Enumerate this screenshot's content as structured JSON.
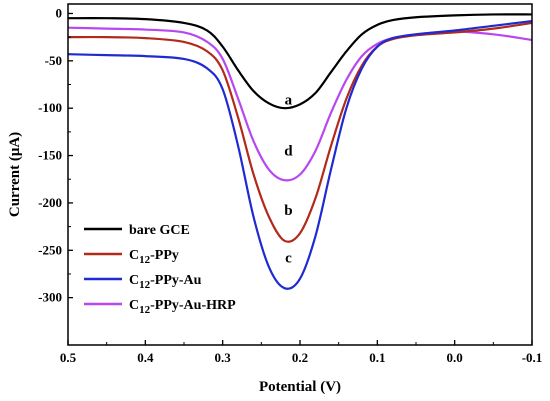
{
  "chart_data": {
    "type": "line",
    "xlabel": "Potential (V)",
    "ylabel": "Current (μA)",
    "xlim": [
      0.5,
      -0.1
    ],
    "ylim": [
      -350,
      10
    ],
    "x_reversed": true,
    "x_ticks": [
      "0.5",
      "0.4",
      "0.3",
      "0.2",
      "0.1",
      "0.0",
      "-0.1"
    ],
    "x_tick_values": [
      0.5,
      0.4,
      0.3,
      0.2,
      0.1,
      0.0,
      -0.1
    ],
    "y_ticks": [
      "0",
      "-50",
      "-100",
      "-150",
      "-200",
      "-250",
      "-300"
    ],
    "y_tick_values": [
      0,
      -50,
      -100,
      -150,
      -200,
      -250,
      -300
    ],
    "legend_position": "bottom-left",
    "series": [
      {
        "name": "bare GCE",
        "color": "#000000",
        "point_label": "a",
        "points": [
          [
            0.5,
            -5
          ],
          [
            0.45,
            -5
          ],
          [
            0.4,
            -6
          ],
          [
            0.35,
            -10
          ],
          [
            0.32,
            -18
          ],
          [
            0.3,
            -35
          ],
          [
            0.28,
            -60
          ],
          [
            0.26,
            -82
          ],
          [
            0.24,
            -95
          ],
          [
            0.22,
            -100
          ],
          [
            0.2,
            -96
          ],
          [
            0.18,
            -84
          ],
          [
            0.16,
            -62
          ],
          [
            0.14,
            -40
          ],
          [
            0.12,
            -22
          ],
          [
            0.1,
            -12
          ],
          [
            0.08,
            -7
          ],
          [
            0.05,
            -4
          ],
          [
            0.0,
            -2
          ],
          [
            -0.05,
            -1
          ],
          [
            -0.1,
            -1
          ]
        ]
      },
      {
        "name": "C12-PPy",
        "color": "#b22a1c",
        "point_label": "b",
        "points": [
          [
            0.5,
            -25
          ],
          [
            0.45,
            -25
          ],
          [
            0.4,
            -26
          ],
          [
            0.35,
            -30
          ],
          [
            0.32,
            -40
          ],
          [
            0.3,
            -60
          ],
          [
            0.28,
            -110
          ],
          [
            0.26,
            -170
          ],
          [
            0.24,
            -215
          ],
          [
            0.22,
            -240
          ],
          [
            0.2,
            -232
          ],
          [
            0.18,
            -195
          ],
          [
            0.16,
            -140
          ],
          [
            0.14,
            -90
          ],
          [
            0.12,
            -55
          ],
          [
            0.1,
            -35
          ],
          [
            0.08,
            -27
          ],
          [
            0.05,
            -23
          ],
          [
            0.0,
            -20
          ],
          [
            -0.05,
            -16
          ],
          [
            -0.1,
            -10
          ]
        ]
      },
      {
        "name": "C12-PPy-Au",
        "color": "#1f2bd1",
        "point_label": "c",
        "points": [
          [
            0.5,
            -43
          ],
          [
            0.45,
            -44
          ],
          [
            0.4,
            -45
          ],
          [
            0.35,
            -48
          ],
          [
            0.32,
            -58
          ],
          [
            0.3,
            -80
          ],
          [
            0.28,
            -140
          ],
          [
            0.26,
            -215
          ],
          [
            0.24,
            -268
          ],
          [
            0.22,
            -290
          ],
          [
            0.2,
            -280
          ],
          [
            0.18,
            -235
          ],
          [
            0.16,
            -165
          ],
          [
            0.14,
            -100
          ],
          [
            0.12,
            -58
          ],
          [
            0.1,
            -35
          ],
          [
            0.08,
            -26
          ],
          [
            0.05,
            -22
          ],
          [
            0.0,
            -18
          ],
          [
            -0.05,
            -13
          ],
          [
            -0.1,
            -8
          ]
        ]
      },
      {
        "name": "C12-PPy-Au-HRP",
        "color": "#b847f0",
        "point_label": "d",
        "points": [
          [
            0.5,
            -15
          ],
          [
            0.45,
            -16
          ],
          [
            0.4,
            -17
          ],
          [
            0.35,
            -20
          ],
          [
            0.32,
            -30
          ],
          [
            0.3,
            -48
          ],
          [
            0.28,
            -90
          ],
          [
            0.26,
            -135
          ],
          [
            0.24,
            -165
          ],
          [
            0.22,
            -176
          ],
          [
            0.2,
            -170
          ],
          [
            0.18,
            -145
          ],
          [
            0.16,
            -105
          ],
          [
            0.14,
            -70
          ],
          [
            0.12,
            -45
          ],
          [
            0.1,
            -32
          ],
          [
            0.08,
            -26
          ],
          [
            0.05,
            -22
          ],
          [
            0.0,
            -19
          ],
          [
            -0.05,
            -22
          ],
          [
            -0.1,
            -28
          ]
        ]
      }
    ],
    "legend_entries": [
      {
        "base": "bare GCE",
        "sub": "",
        "rest": ""
      },
      {
        "base": "C",
        "sub": "12",
        "rest": "-PPy"
      },
      {
        "base": "C",
        "sub": "12",
        "rest": "-PPy-Au"
      },
      {
        "base": "C",
        "sub": "12",
        "rest": "-PPy-Au-HRP"
      }
    ],
    "curve_labels": [
      {
        "text": "a",
        "x": 0.215,
        "y": -96
      },
      {
        "text": "b",
        "x": 0.215,
        "y": -213
      },
      {
        "text": "c",
        "x": 0.215,
        "y": -263
      },
      {
        "text": "d",
        "x": 0.215,
        "y": -150
      }
    ]
  }
}
